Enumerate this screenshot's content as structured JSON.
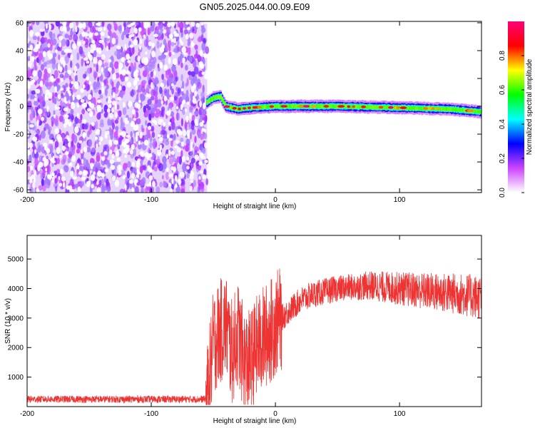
{
  "title": "GN05.2025.044.00.09.E09",
  "chart_data": [
    {
      "type": "heatmap",
      "xlabel": "Height of straight line (km)",
      "ylabel": "Frequency (Hz)",
      "xlim": [
        -200,
        166
      ],
      "ylim": [
        -62,
        61
      ],
      "x_ticks": [
        -200,
        -100,
        0,
        100
      ],
      "y_ticks": [
        -60,
        -40,
        -20,
        0,
        20,
        40,
        60
      ],
      "colorbar": {
        "label": "Normalized spectral amplitude",
        "range": [
          0.0,
          1.0
        ],
        "ticks": [
          0.0,
          0.2,
          0.4,
          0.6,
          0.8
        ],
        "tick_labels": [
          "0.0",
          "0.2",
          "0.4",
          "0.6",
          "0.8"
        ],
        "colormap": [
          "#ffffff",
          "#cc44ff",
          "#0000ff",
          "#00ffff",
          "#00ff00",
          "#ffff00",
          "#ff0000",
          "#ff0077"
        ]
      },
      "noise_region_x": [
        -200,
        -55
      ],
      "signal_track": [
        {
          "x": -55,
          "y": 3
        },
        {
          "x": -50,
          "y": 6
        },
        {
          "x": -44,
          "y": 7
        },
        {
          "x": -40,
          "y": 0
        },
        {
          "x": -30,
          "y": -2
        },
        {
          "x": -20,
          "y": -1
        },
        {
          "x": 0,
          "y": 0
        },
        {
          "x": 50,
          "y": 0
        },
        {
          "x": 100,
          "y": -1
        },
        {
          "x": 140,
          "y": -2
        },
        {
          "x": 166,
          "y": -4
        }
      ]
    },
    {
      "type": "line",
      "xlabel": "Height of straight line (km)",
      "ylabel": "SNR (10 * v/v)",
      "xlim": [
        -200,
        166
      ],
      "ylim": [
        0,
        5800
      ],
      "x_ticks": [
        -200,
        -100,
        0,
        100
      ],
      "y_ticks": [
        1000,
        2000,
        3000,
        4000,
        5000
      ],
      "color": "#ee3333",
      "series": [
        {
          "x": [
            -200,
            -150,
            -100,
            -60,
            -55,
            -50,
            -45,
            -40,
            -35,
            -30,
            -25,
            -20,
            -15,
            -10,
            -5,
            0,
            10,
            20,
            30,
            50,
            75,
            100,
            125,
            150,
            166
          ],
          "y": [
            250,
            250,
            250,
            250,
            250,
            2200,
            2500,
            2800,
            1800,
            2500,
            1500,
            1500,
            2000,
            2300,
            2500,
            2800,
            3200,
            3600,
            3800,
            4000,
            4100,
            4000,
            3900,
            3800,
            3700
          ]
        }
      ]
    }
  ]
}
